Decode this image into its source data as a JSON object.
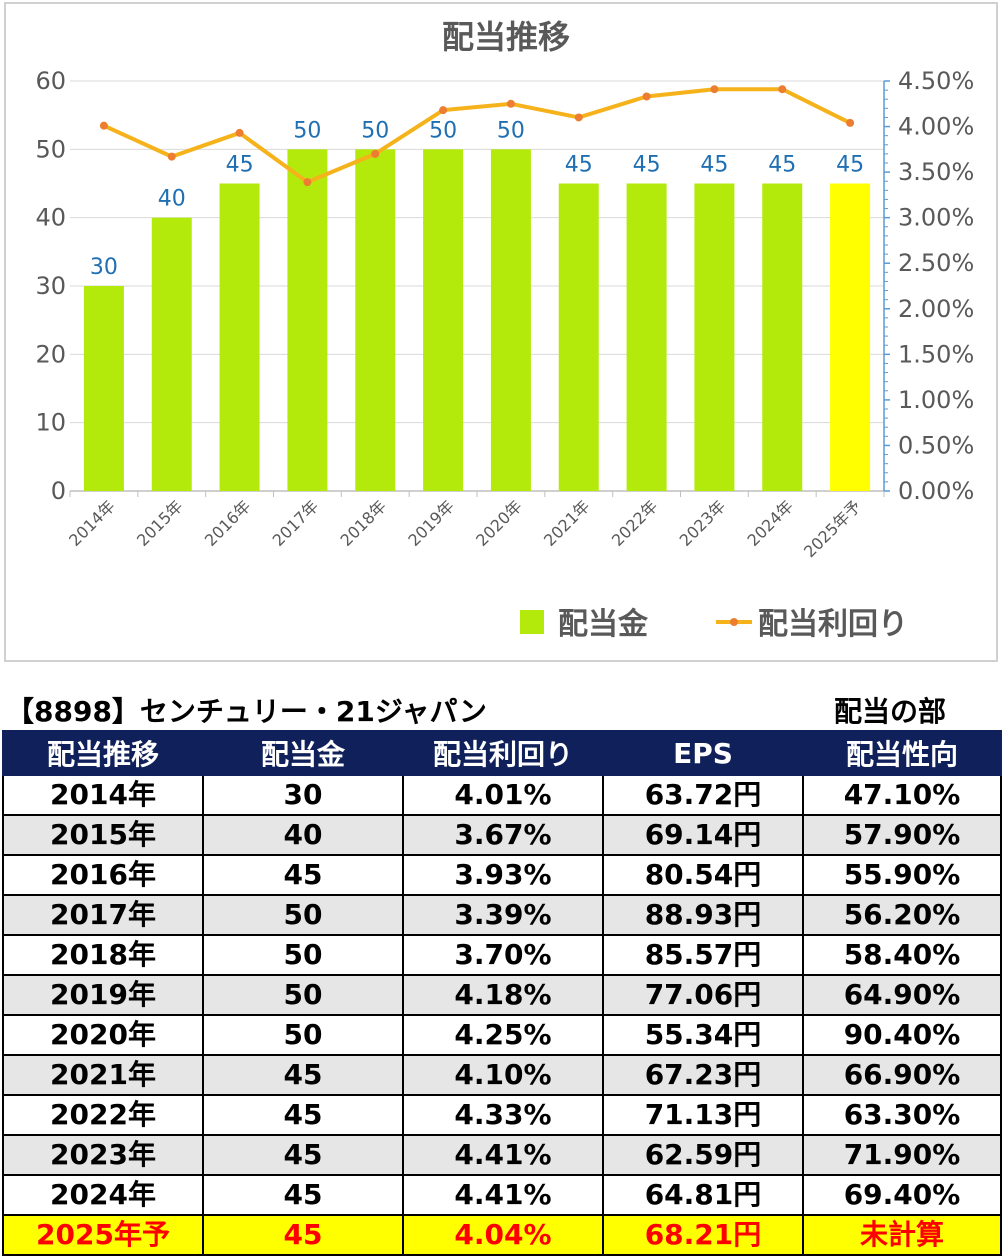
{
  "chart_data": {
    "type": "bar+line",
    "title": "配当推移",
    "categories": [
      "2014年",
      "2015年",
      "2016年",
      "2017年",
      "2018年",
      "2019年",
      "2020年",
      "2021年",
      "2022年",
      "2023年",
      "2024年",
      "2025年予"
    ],
    "series": [
      {
        "name": "配当金",
        "type": "bar",
        "axis": "left",
        "values": [
          30,
          40,
          45,
          50,
          50,
          50,
          50,
          45,
          45,
          45,
          45,
          45
        ],
        "color": "#b3ea0c",
        "highlight_last_color": "#ffff00"
      },
      {
        "name": "配当利回り",
        "type": "line",
        "axis": "right",
        "values": [
          4.01,
          3.67,
          3.93,
          3.39,
          3.7,
          4.18,
          4.25,
          4.1,
          4.33,
          4.41,
          4.41,
          4.04
        ],
        "color": "#f5b21b"
      }
    ],
    "y_left": {
      "min": 0,
      "max": 60,
      "ticks": [
        "0",
        "10",
        "20",
        "30",
        "40",
        "50",
        "60"
      ]
    },
    "y_right": {
      "min": 0,
      "max": 4.5,
      "ticks": [
        "0.00%",
        "0.50%",
        "1.00%",
        "1.50%",
        "2.00%",
        "2.50%",
        "3.00%",
        "3.50%",
        "4.00%",
        "4.50%"
      ]
    },
    "grid": true,
    "legend": "bottom-right",
    "data_labels": [
      "30",
      "40",
      "45",
      "50",
      "50",
      "50",
      "50",
      "45",
      "45",
      "45",
      "45",
      "45"
    ]
  },
  "table": {
    "company": "【8898】センチュリー・21ジャパン",
    "section": "配当の部",
    "headers": [
      "配当推移",
      "配当金",
      "配当利回り",
      "EPS",
      "配当性向"
    ],
    "rows": [
      [
        "2014年",
        "30",
        "4.01%",
        "63.72円",
        "47.10%"
      ],
      [
        "2015年",
        "40",
        "3.67%",
        "69.14円",
        "57.90%"
      ],
      [
        "2016年",
        "45",
        "3.93%",
        "80.54円",
        "55.90%"
      ],
      [
        "2017年",
        "50",
        "3.39%",
        "88.93円",
        "56.20%"
      ],
      [
        "2018年",
        "50",
        "3.70%",
        "85.57円",
        "58.40%"
      ],
      [
        "2019年",
        "50",
        "4.18%",
        "77.06円",
        "64.90%"
      ],
      [
        "2020年",
        "50",
        "4.25%",
        "55.34円",
        "90.40%"
      ],
      [
        "2021年",
        "45",
        "4.10%",
        "67.23円",
        "66.90%"
      ],
      [
        "2022年",
        "45",
        "4.33%",
        "71.13円",
        "63.30%"
      ],
      [
        "2023年",
        "45",
        "4.41%",
        "62.59円",
        "71.90%"
      ],
      [
        "2024年",
        "45",
        "4.41%",
        "64.81円",
        "69.40%"
      ],
      [
        "2025年予",
        "45",
        "4.04%",
        "68.21円",
        "未計算"
      ]
    ]
  },
  "colors": {
    "header_bg": "#10205a",
    "forecast_bg": "#ffff00",
    "forecast_text": "#ff0000"
  }
}
